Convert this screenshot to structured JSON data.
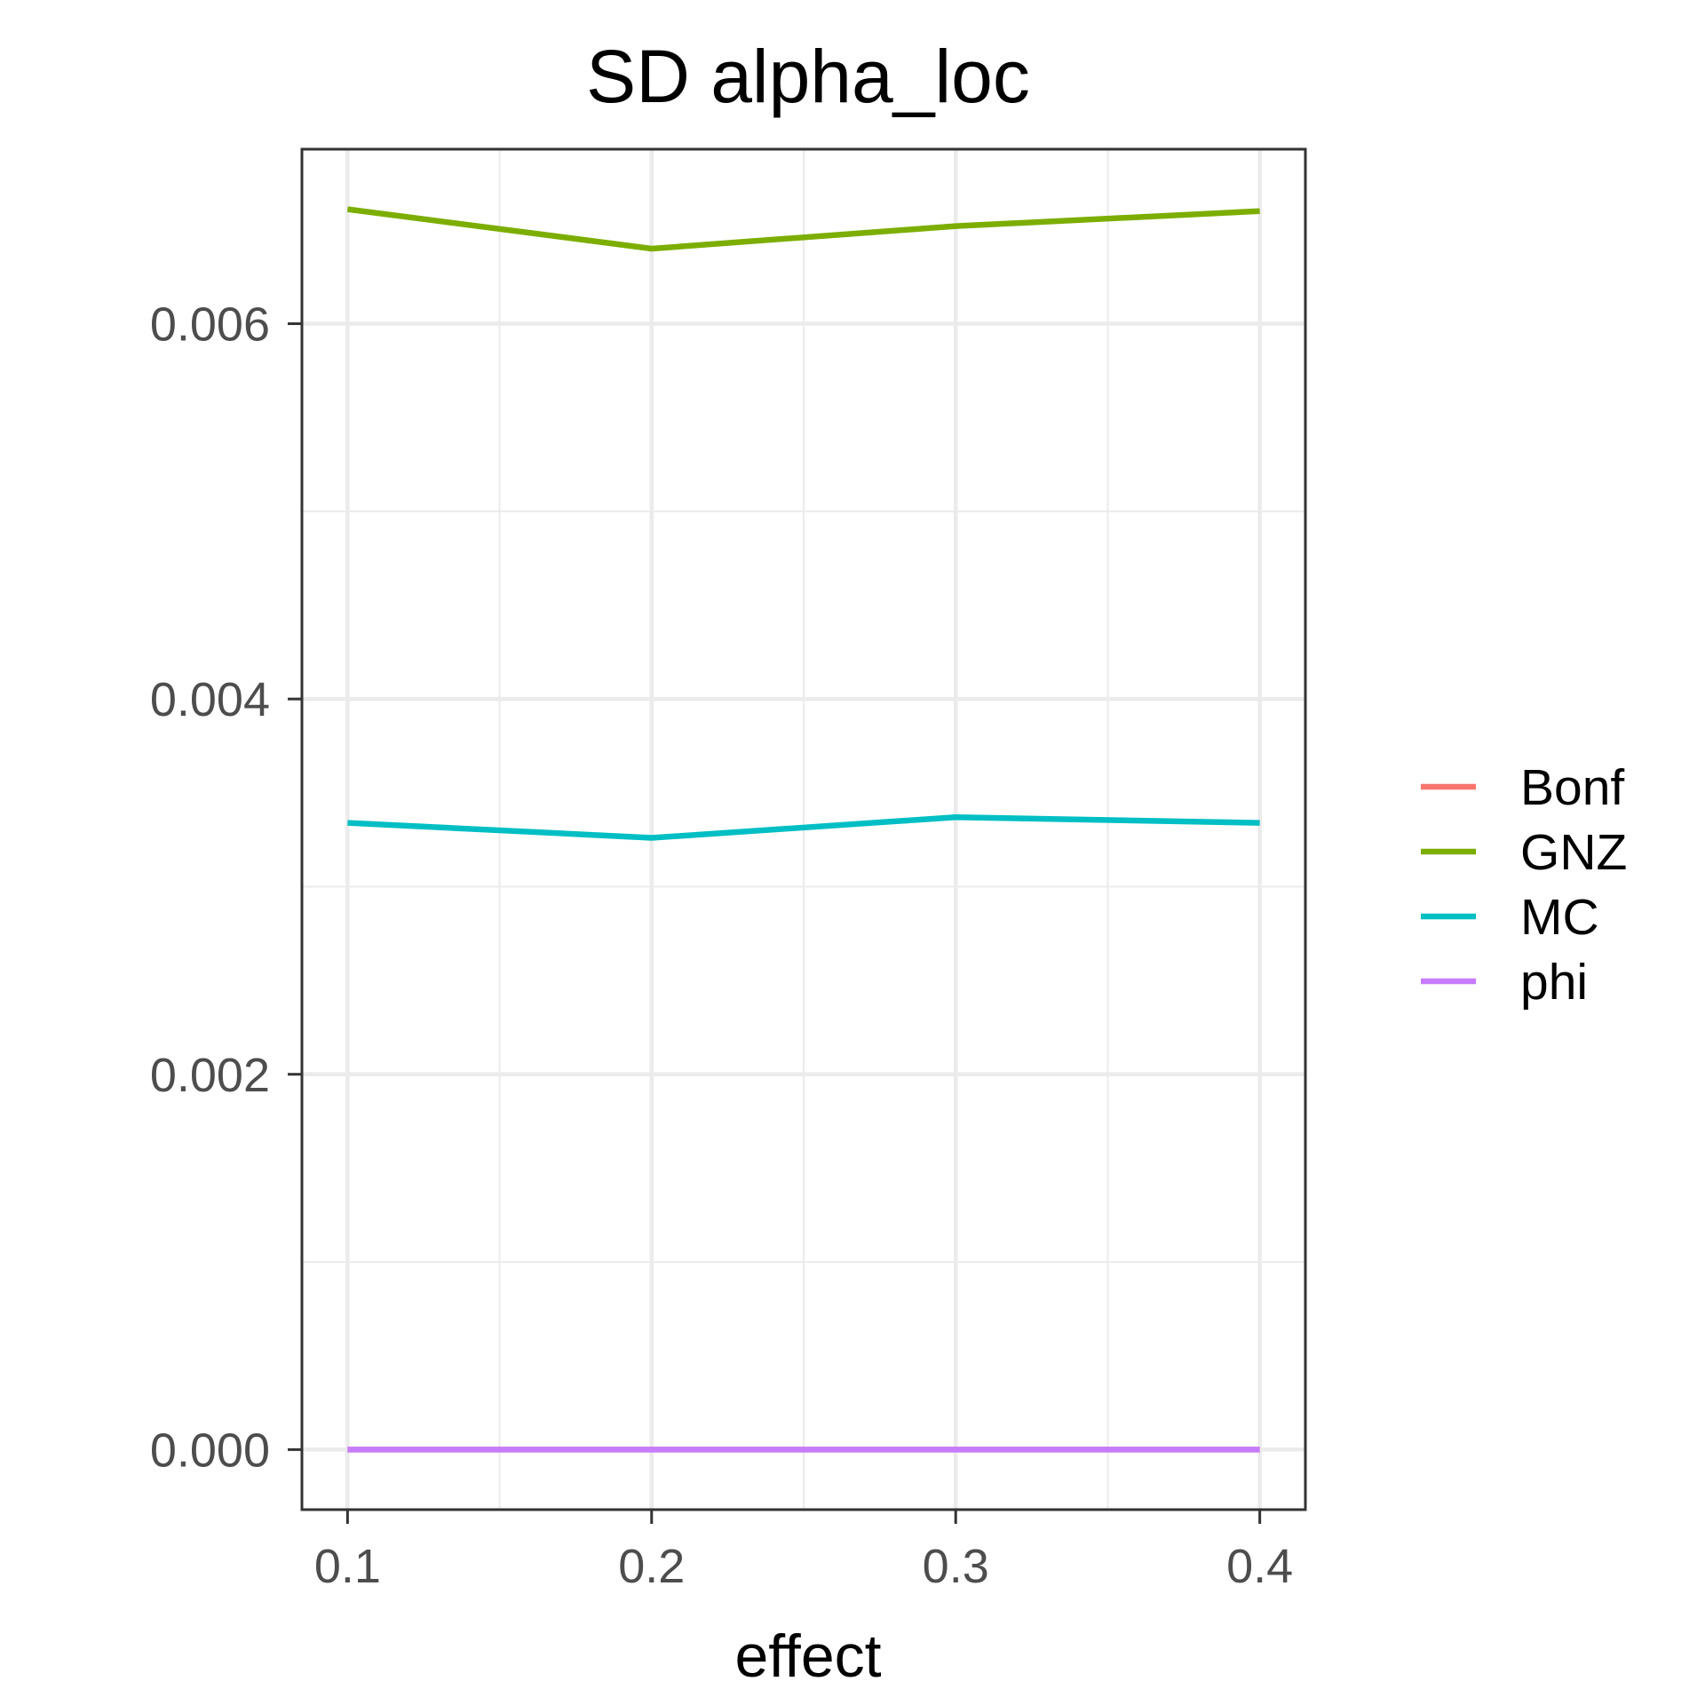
{
  "chart_data": {
    "type": "line",
    "title": "SD alpha_loc",
    "xlabel": "effect",
    "ylabel": "",
    "x": [
      0.1,
      0.2,
      0.3,
      0.4
    ],
    "x_ticks": [
      "0.1",
      "0.2",
      "0.3",
      "0.4"
    ],
    "y_ticks": [
      "0.000",
      "0.002",
      "0.004",
      "0.006"
    ],
    "xlim": [
      0.085,
      0.415
    ],
    "ylim": [
      -0.00032,
      0.00693
    ],
    "grid": true,
    "legend_position": "right",
    "series": [
      {
        "name": "Bonf",
        "color": "#F8766D",
        "values": [
          0.0,
          0.0,
          0.0,
          0.0
        ]
      },
      {
        "name": "GNZ",
        "color": "#7CAE00",
        "values": [
          0.00661,
          0.0064,
          0.00652,
          0.0066
        ]
      },
      {
        "name": "MC",
        "color": "#00BFC4",
        "values": [
          0.00334,
          0.00326,
          0.00337,
          0.00334
        ]
      },
      {
        "name": "phi",
        "color": "#C77CFF",
        "values": [
          0.0,
          0.0,
          0.0,
          0.0
        ]
      }
    ]
  }
}
